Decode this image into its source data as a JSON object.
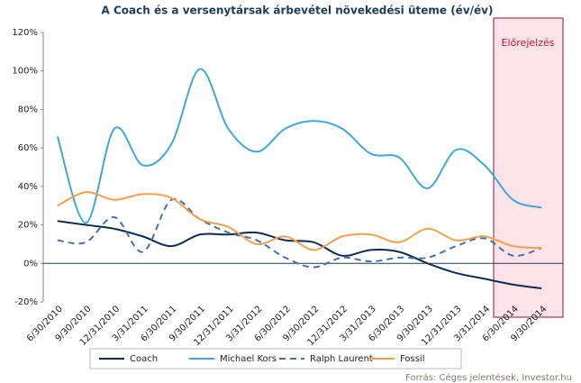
{
  "chart_data": {
    "type": "line",
    "title": "A Coach és a versenytársak árbevétel növekedési üteme (év/év)",
    "categories": [
      "6/30/2010",
      "9/30/2010",
      "12/31/2010",
      "3/31/2011",
      "6/30/2011",
      "9/30/2011",
      "12/31/2011",
      "3/31/2012",
      "6/30/2012",
      "9/30/2012",
      "12/31/2012",
      "3/31/2013",
      "6/30/2013",
      "9/30/2013",
      "12/31/2013",
      "3/31/2014",
      "6/30/2014",
      "9/30/2014"
    ],
    "series": [
      {
        "name": "Coach",
        "color": "#0d2d4f",
        "dash": false,
        "values": [
          22,
          20,
          18,
          14,
          9,
          15,
          15,
          16,
          12,
          11,
          4,
          7,
          6,
          0,
          -5,
          -8,
          -11,
          -13
        ]
      },
      {
        "name": "Michael Kors",
        "color": "#3fa9d4",
        "dash": false,
        "values": [
          66,
          21,
          70,
          51,
          62,
          101,
          70,
          58,
          70,
          74,
          70,
          57,
          55,
          39,
          59,
          51,
          33,
          29
        ]
      },
      {
        "name": "Ralph Laurent",
        "color": "#4a6fa5",
        "dash": true,
        "values": [
          12,
          11,
          24,
          6,
          33,
          23,
          16,
          12,
          3,
          -2,
          3,
          1,
          3,
          3,
          9,
          13,
          4,
          8
        ]
      },
      {
        "name": "Fossil",
        "color": "#f0a050",
        "dash": false,
        "values": [
          30,
          37,
          33,
          36,
          34,
          23,
          19,
          10,
          14,
          7,
          14,
          15,
          11,
          18,
          12,
          14,
          9,
          8
        ]
      }
    ],
    "ylim": [
      -20,
      120
    ],
    "yticks": [
      {
        "value": -20,
        "label": "-20%"
      },
      {
        "value": 0,
        "label": "0%"
      },
      {
        "value": 20,
        "label": "20%"
      },
      {
        "value": 40,
        "label": "40%"
      },
      {
        "value": 60,
        "label": "60%"
      },
      {
        "value": 80,
        "label": "80%"
      },
      {
        "value": 100,
        "label": "100%"
      },
      {
        "value": 120,
        "label": "120%"
      }
    ],
    "annotation": "Előrejelzés",
    "source": "Forrás: Céges jelentések, Investor.hu"
  }
}
